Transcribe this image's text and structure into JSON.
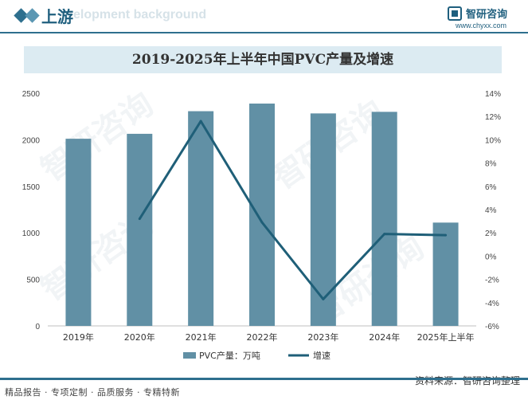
{
  "header": {
    "section_title": "上游",
    "section_subtitle": "elopment background",
    "brand_name": "智研咨询",
    "brand_url": "www.chyxx.com"
  },
  "footer": {
    "tagline": "精品报告 · 专项定制 · 品质服务 · 专精特新",
    "source": "资料来源：智研咨询整理"
  },
  "watermark_text": "智研咨询",
  "chart_data": {
    "type": "bar",
    "title": "2019-2025年上半年中国PVC产量及增速",
    "categories": [
      "2019年",
      "2020年",
      "2021年",
      "2022年",
      "2023年",
      "2024年",
      "2025年上半年"
    ],
    "series": [
      {
        "name": "PVC产量：万吨",
        "type": "bar",
        "axis": "left",
        "color": "#6190a5",
        "values": [
          2011,
          2064,
          2307,
          2389,
          2283,
          2300,
          1110
        ]
      },
      {
        "name": "增速",
        "type": "line",
        "axis": "right",
        "color": "#1f5f78",
        "values": [
          null,
          3.2,
          11.6,
          2.9,
          -3.7,
          1.9,
          1.8
        ]
      }
    ],
    "y_left": {
      "min": 0,
      "max": 2500,
      "ticks": [
        "0",
        "500",
        "1000",
        "1500",
        "2000",
        "2500"
      ]
    },
    "y_right": {
      "min": -6,
      "max": 14,
      "ticks": [
        "-6%",
        "-4%",
        "-2%",
        "0%",
        "2%",
        "4%",
        "6%",
        "8%",
        "10%",
        "12%",
        "14%"
      ]
    },
    "grid": false,
    "legend": "bottom"
  }
}
